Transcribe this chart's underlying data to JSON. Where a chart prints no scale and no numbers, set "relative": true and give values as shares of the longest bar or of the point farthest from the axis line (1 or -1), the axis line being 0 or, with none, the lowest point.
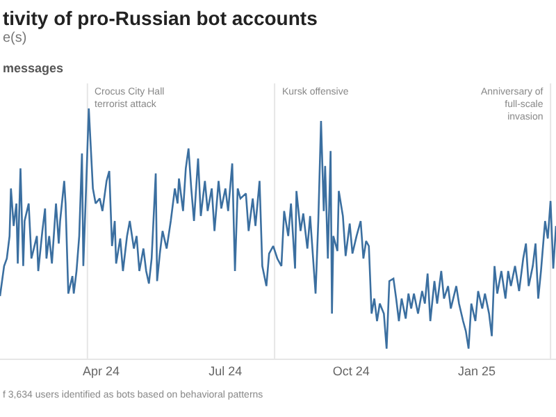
{
  "chart_data": {
    "type": "line",
    "title": "tivity of pro-Russian bot accounts",
    "subtitle": "e(s)",
    "ylabel": "messages",
    "relative": true,
    "marker": "none",
    "line_style": "solid",
    "xlim": [
      "2024-01-18",
      "2025-02-28"
    ],
    "xticks": [
      {
        "value": "2024-04-01",
        "label": "Apr 24"
      },
      {
        "value": "2024-07-01",
        "label": "Jul 24"
      },
      {
        "value": "2024-10-01",
        "label": "Oct 24"
      },
      {
        "value": "2025-01-01",
        "label": "Jan 25"
      }
    ],
    "x": [
      "2024-01-18",
      "2024-01-21",
      "2024-01-23",
      "2024-01-25",
      "2024-01-26",
      "2024-01-28",
      "2024-01-30",
      "2024-01-31",
      "2024-02-02",
      "2024-02-04",
      "2024-02-05",
      "2024-02-08",
      "2024-02-10",
      "2024-02-14",
      "2024-02-15",
      "2024-02-18",
      "2024-02-20",
      "2024-02-21",
      "2024-02-23",
      "2024-02-25",
      "2024-02-28",
      "2024-03-01",
      "2024-03-02",
      "2024-03-05",
      "2024-03-06",
      "2024-03-08",
      "2024-03-11",
      "2024-03-12",
      "2024-03-14",
      "2024-03-16",
      "2024-03-18",
      "2024-03-19",
      "2024-03-21",
      "2024-03-23",
      "2024-03-26",
      "2024-03-28",
      "2024-03-31",
      "2024-04-02",
      "2024-04-05",
      "2024-04-07",
      "2024-04-09",
      "2024-04-11",
      "2024-04-12",
      "2024-04-15",
      "2024-04-17",
      "2024-04-20",
      "2024-04-22",
      "2024-04-25",
      "2024-04-27",
      "2024-04-29",
      "2024-05-02",
      "2024-05-04",
      "2024-05-06",
      "2024-05-08",
      "2024-05-11",
      "2024-05-12",
      "2024-05-14",
      "2024-05-16",
      "2024-05-19",
      "2024-05-22",
      "2024-05-25",
      "2024-05-27",
      "2024-05-28",
      "2024-05-31",
      "2024-06-02",
      "2024-06-04",
      "2024-06-06",
      "2024-06-08",
      "2024-06-11",
      "2024-06-13",
      "2024-06-16",
      "2024-06-18",
      "2024-06-21",
      "2024-06-23",
      "2024-06-26",
      "2024-06-28",
      "2024-07-01",
      "2024-07-03",
      "2024-07-06",
      "2024-07-08",
      "2024-07-10",
      "2024-07-12",
      "2024-07-16",
      "2024-07-18",
      "2024-07-21",
      "2024-07-23",
      "2024-07-26",
      "2024-07-28",
      "2024-07-31",
      "2024-08-02",
      "2024-08-05",
      "2024-08-08",
      "2024-08-11",
      "2024-08-13",
      "2024-08-16",
      "2024-08-18",
      "2024-08-21",
      "2024-08-22",
      "2024-08-25",
      "2024-08-27",
      "2024-08-30",
      "2024-09-01",
      "2024-09-05",
      "2024-09-07",
      "2024-09-09",
      "2024-09-11",
      "2024-09-12",
      "2024-09-14",
      "2024-09-16",
      "2024-09-17",
      "2024-09-18",
      "2024-09-21",
      "2024-09-22",
      "2024-09-25",
      "2024-09-27",
      "2024-09-30",
      "2024-10-02",
      "2024-10-05",
      "2024-10-08",
      "2024-10-10",
      "2024-10-12",
      "2024-10-14",
      "2024-10-16",
      "2024-10-18",
      "2024-10-20",
      "2024-10-22",
      "2024-10-25",
      "2024-10-27",
      "2024-10-29",
      "2024-11-01",
      "2024-11-03",
      "2024-11-05",
      "2024-11-07",
      "2024-11-10",
      "2024-11-12",
      "2024-11-14",
      "2024-11-16",
      "2024-11-19",
      "2024-11-22",
      "2024-11-24",
      "2024-11-26",
      "2024-11-28",
      "2024-12-01",
      "2024-12-03",
      "2024-12-06",
      "2024-12-08",
      "2024-12-11",
      "2024-12-13",
      "2024-12-17",
      "2024-12-19",
      "2024-12-22",
      "2024-12-24",
      "2024-12-26",
      "2024-12-28",
      "2024-12-31",
      "2025-01-02",
      "2025-01-05",
      "2025-01-07",
      "2025-01-10",
      "2025-01-12",
      "2025-01-14",
      "2025-01-16",
      "2025-01-19",
      "2025-01-22",
      "2025-01-24",
      "2025-01-26",
      "2025-01-29",
      "2025-02-01",
      "2025-02-04",
      "2025-02-06",
      "2025-02-08",
      "2025-02-11",
      "2025-02-13",
      "2025-02-15",
      "2025-02-17",
      "2025-02-20",
      "2025-02-22",
      "2025-02-24",
      "2025-02-26",
      "2025-02-28"
    ],
    "series": [
      {
        "color": "#3b6fa0",
        "values": [
          0.25,
          0.37,
          0.4,
          0.49,
          0.68,
          0.53,
          0.62,
          0.38,
          0.76,
          0.37,
          0.55,
          0.62,
          0.4,
          0.49,
          0.35,
          0.51,
          0.6,
          0.4,
          0.49,
          0.38,
          0.62,
          0.46,
          0.55,
          0.71,
          0.62,
          0.26,
          0.33,
          0.26,
          0.35,
          0.49,
          0.82,
          0.37,
          0.68,
          1.0,
          0.68,
          0.62,
          0.64,
          0.59,
          0.71,
          0.75,
          0.45,
          0.55,
          0.38,
          0.48,
          0.35,
          0.49,
          0.55,
          0.44,
          0.49,
          0.35,
          0.44,
          0.35,
          0.3,
          0.4,
          0.74,
          0.31,
          0.42,
          0.51,
          0.44,
          0.55,
          0.68,
          0.62,
          0.72,
          0.59,
          0.76,
          0.84,
          0.68,
          0.55,
          0.8,
          0.57,
          0.71,
          0.59,
          0.68,
          0.51,
          0.71,
          0.6,
          0.68,
          0.59,
          0.78,
          0.35,
          0.68,
          0.64,
          0.66,
          0.51,
          0.64,
          0.53,
          0.71,
          0.37,
          0.29,
          0.42,
          0.45,
          0.4,
          0.37,
          0.59,
          0.49,
          0.62,
          0.36,
          0.67,
          0.51,
          0.58,
          0.44,
          0.57,
          0.26,
          0.55,
          0.95,
          0.59,
          0.77,
          0.4,
          0.83,
          0.18,
          0.49,
          0.43,
          0.67,
          0.57,
          0.41,
          0.54,
          0.42,
          0.49,
          0.55,
          0.4,
          0.47,
          0.45,
          0.18,
          0.24,
          0.15,
          0.22,
          0.18,
          0.04,
          0.31,
          0.32,
          0.24,
          0.15,
          0.24,
          0.16,
          0.26,
          0.2,
          0.26,
          0.18,
          0.27,
          0.22,
          0.34,
          0.15,
          0.31,
          0.22,
          0.35,
          0.24,
          0.29,
          0.2,
          0.29,
          0.22,
          0.15,
          0.11,
          0.04,
          0.22,
          0.15,
          0.27,
          0.2,
          0.26,
          0.18,
          0.09,
          0.37,
          0.26,
          0.35,
          0.24,
          0.35,
          0.29,
          0.37,
          0.27,
          0.4,
          0.46,
          0.29,
          0.37,
          0.46,
          0.24,
          0.35,
          0.55,
          0.48,
          0.63,
          0.36,
          0.53
        ]
      }
    ],
    "ref_lines": [
      {
        "axis": "x",
        "value": "2024-03-22",
        "label": "Crocus City Hall\nterrorist attack",
        "color": "#e6e6e6"
      },
      {
        "axis": "x",
        "value": "2024-08-06",
        "label": "Kursk offensive",
        "color": "#e6e6e6"
      },
      {
        "axis": "x",
        "value": "2025-02-24",
        "label": "Anniversary of\nfull-scale\ninvasion",
        "color": "#e6e6e6"
      }
    ],
    "annotations": [
      "f 3,634 users identified as bots based on behavioral patterns"
    ]
  }
}
